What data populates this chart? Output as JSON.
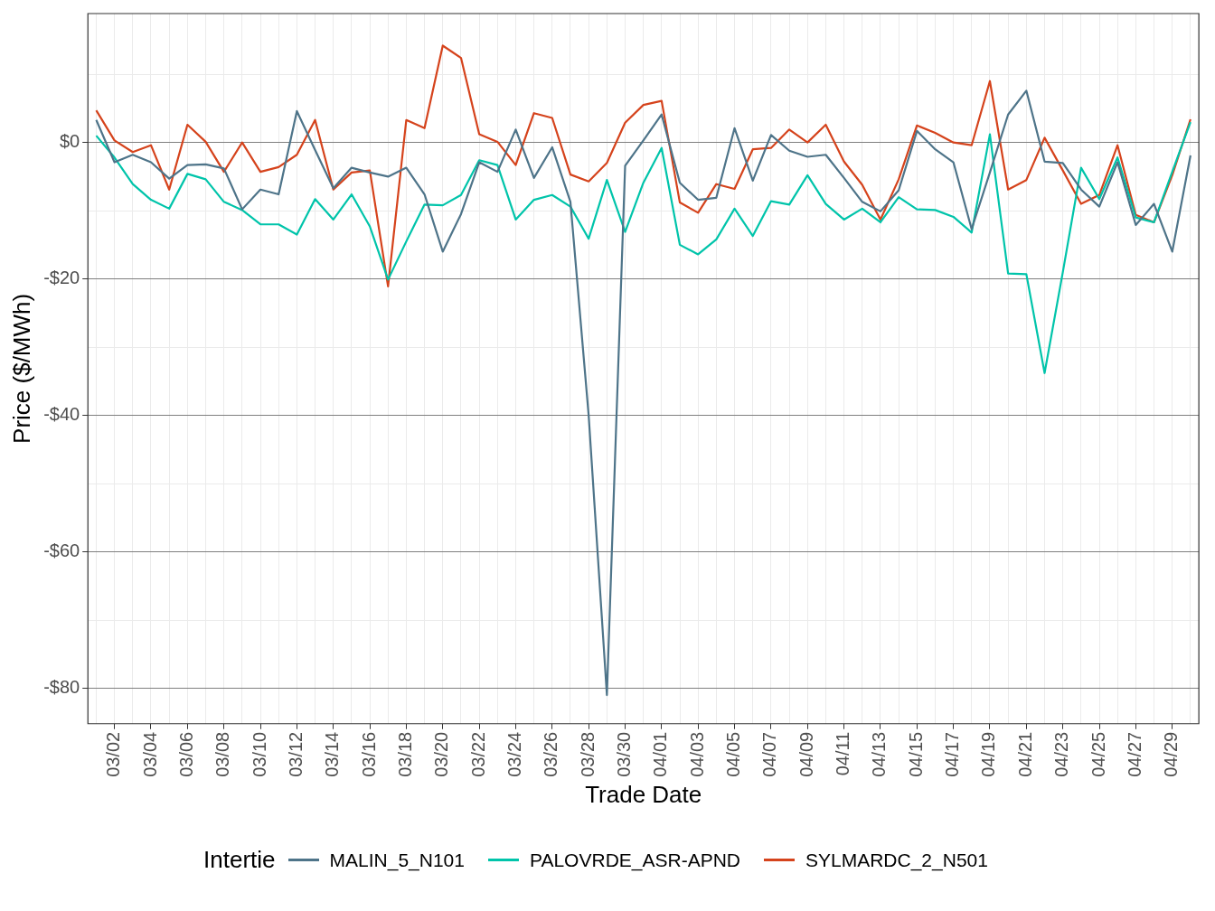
{
  "chart_data": {
    "type": "line",
    "xlabel": "Trade Date",
    "ylabel": "Price ($/MWh)",
    "legend_title": "Intertie",
    "legend": "bottom",
    "grid": true,
    "marker": "none",
    "line_style": "solid",
    "x": [
      "--03-01",
      "--03-02",
      "--03-03",
      "--03-04",
      "--03-05",
      "--03-06",
      "--03-07",
      "--03-08",
      "--03-09",
      "--03-10",
      "--03-11",
      "--03-12",
      "--03-13",
      "--03-14",
      "--03-15",
      "--03-16",
      "--03-17",
      "--03-18",
      "--03-19",
      "--03-20",
      "--03-21",
      "--03-22",
      "--03-23",
      "--03-24",
      "--03-25",
      "--03-26",
      "--03-27",
      "--03-28",
      "--03-29",
      "--03-30",
      "--03-31",
      "--04-01",
      "--04-02",
      "--04-03",
      "--04-04",
      "--04-05",
      "--04-06",
      "--04-07",
      "--04-08",
      "--04-09",
      "--04-10",
      "--04-11",
      "--04-12",
      "--04-13",
      "--04-14",
      "--04-15",
      "--04-16",
      "--04-17",
      "--04-18",
      "--04-19",
      "--04-20",
      "--04-21",
      "--04-22",
      "--04-23",
      "--04-24",
      "--04-25",
      "--04-26",
      "--04-27",
      "--04-28",
      "--04-29",
      "--04-30"
    ],
    "xlim": [
      "--02-28T13:00",
      "--04-30T11:00"
    ],
    "xticks": [
      {
        "value": "--03-01",
        "label": null
      },
      {
        "value": "--03-02",
        "label": "03/02"
      },
      {
        "value": "--03-03",
        "label": null
      },
      {
        "value": "--03-04",
        "label": "03/04"
      },
      {
        "value": "--03-05",
        "label": null
      },
      {
        "value": "--03-06",
        "label": "03/06"
      },
      {
        "value": "--03-07",
        "label": null
      },
      {
        "value": "--03-08",
        "label": "03/08"
      },
      {
        "value": "--03-09",
        "label": null
      },
      {
        "value": "--03-10",
        "label": "03/10"
      },
      {
        "value": "--03-11",
        "label": null
      },
      {
        "value": "--03-12",
        "label": "03/12"
      },
      {
        "value": "--03-13",
        "label": null
      },
      {
        "value": "--03-14",
        "label": "03/14"
      },
      {
        "value": "--03-15",
        "label": null
      },
      {
        "value": "--03-16",
        "label": "03/16"
      },
      {
        "value": "--03-17",
        "label": null
      },
      {
        "value": "--03-18",
        "label": "03/18"
      },
      {
        "value": "--03-19",
        "label": null
      },
      {
        "value": "--03-20",
        "label": "03/20"
      },
      {
        "value": "--03-21",
        "label": null
      },
      {
        "value": "--03-22",
        "label": "03/22"
      },
      {
        "value": "--03-23",
        "label": null
      },
      {
        "value": "--03-24",
        "label": "03/24"
      },
      {
        "value": "--03-25",
        "label": null
      },
      {
        "value": "--03-26",
        "label": "03/26"
      },
      {
        "value": "--03-27",
        "label": null
      },
      {
        "value": "--03-28",
        "label": "03/28"
      },
      {
        "value": "--03-29",
        "label": null
      },
      {
        "value": "--03-30",
        "label": "03/30"
      },
      {
        "value": "--03-31",
        "label": null
      },
      {
        "value": "--04-01",
        "label": "04/01"
      },
      {
        "value": "--04-02",
        "label": null
      },
      {
        "value": "--04-03",
        "label": "04/03"
      },
      {
        "value": "--04-04",
        "label": null
      },
      {
        "value": "--04-05",
        "label": "04/05"
      },
      {
        "value": "--04-06",
        "label": null
      },
      {
        "value": "--04-07",
        "label": "04/07"
      },
      {
        "value": "--04-08",
        "label": null
      },
      {
        "value": "--04-09",
        "label": "04/09"
      },
      {
        "value": "--04-10",
        "label": null
      },
      {
        "value": "--04-11",
        "label": "04/11"
      },
      {
        "value": "--04-12",
        "label": null
      },
      {
        "value": "--04-13",
        "label": "04/13"
      },
      {
        "value": "--04-14",
        "label": null
      },
      {
        "value": "--04-15",
        "label": "04/15"
      },
      {
        "value": "--04-16",
        "label": null
      },
      {
        "value": "--04-17",
        "label": "04/17"
      },
      {
        "value": "--04-18",
        "label": null
      },
      {
        "value": "--04-19",
        "label": "04/19"
      },
      {
        "value": "--04-20",
        "label": null
      },
      {
        "value": "--04-21",
        "label": "04/21"
      },
      {
        "value": "--04-22",
        "label": null
      },
      {
        "value": "--04-23",
        "label": "04/23"
      },
      {
        "value": "--04-24",
        "label": null
      },
      {
        "value": "--04-25",
        "label": "04/25"
      },
      {
        "value": "--04-26",
        "label": null
      },
      {
        "value": "--04-27",
        "label": "04/27"
      },
      {
        "value": "--04-28",
        "label": null
      },
      {
        "value": "--04-29",
        "label": "04/29"
      },
      {
        "value": "--04-30",
        "label": null
      }
    ],
    "ylim": [
      -85.2,
      18.9
    ],
    "yticks": [
      {
        "value": -80,
        "label": "-$80"
      },
      {
        "value": -70,
        "label": null
      },
      {
        "value": -60,
        "label": "-$60"
      },
      {
        "value": -50,
        "label": null
      },
      {
        "value": -40,
        "label": "-$40"
      },
      {
        "value": -30,
        "label": null
      },
      {
        "value": -20,
        "label": "-$20"
      },
      {
        "value": -10,
        "label": null
      },
      {
        "value": 0,
        "label": "$0"
      },
      {
        "value": 10,
        "label": null
      }
    ],
    "series": [
      {
        "name": "MALIN_5_N101",
        "color": "#4e7489",
        "values": [
          3.3,
          -2.9,
          -1.8,
          -2.9,
          -5.3,
          -3.3,
          -3.2,
          -3.8,
          -9.8,
          -6.9,
          -7.6,
          4.6,
          -1.1,
          -6.7,
          -3.7,
          -4.4,
          -5.0,
          -3.7,
          -7.6,
          -16.0,
          -10.5,
          -2.9,
          -4.3,
          1.9,
          -5.2,
          -0.7,
          -8.7,
          -40,
          -81,
          -3.4,
          0.3,
          4.1,
          -5.9,
          -8.4,
          -8.1,
          2.1,
          -5.6,
          1.1,
          -1.2,
          -2.1,
          -1.8,
          -5.2,
          -8.7,
          -10.1,
          -7.0,
          1.7,
          -1.0,
          -2.9,
          -12.7,
          -4.4,
          4.1,
          7.6,
          -2.8,
          -3.0,
          -6.9,
          -9.4,
          -2.9,
          -12.1,
          -9.0,
          -16.0,
          -1.9
        ]
      },
      {
        "name": "PALOVRDE_ASR-APND",
        "color": "#00c4aa",
        "values": [
          1.0,
          -2.2,
          -6.1,
          -8.4,
          -9.7,
          -4.6,
          -5.4,
          -8.7,
          -9.9,
          -12.0,
          -12.0,
          -13.5,
          -8.3,
          -11.3,
          -7.6,
          -12.3,
          -20.1,
          -14.5,
          -9.1,
          -9.2,
          -7.7,
          -2.6,
          -3.3,
          -11.3,
          -8.4,
          -7.7,
          -9.4,
          -14.1,
          -5.5,
          -13.1,
          -5.9,
          -0.8,
          -15.0,
          -16.4,
          -14.2,
          -9.7,
          -13.7,
          -8.6,
          -9.1,
          -4.8,
          -9.0,
          -11.3,
          -9.7,
          -11.7,
          -8.0,
          -9.8,
          -9.9,
          -10.9,
          -13.2,
          1.2,
          -19.2,
          -19.3,
          -33.8,
          -19,
          -3.7,
          -8.3,
          -2.2,
          -11.0,
          -11.7,
          -4.3,
          3.0
        ]
      },
      {
        "name": "SYLMARDC_2_N501",
        "color": "#d5431c",
        "values": [
          4.7,
          0.3,
          -1.4,
          -0.4,
          -6.9,
          2.6,
          0.1,
          -4.3,
          0.0,
          -4.3,
          -3.6,
          -1.8,
          3.3,
          -6.9,
          -4.4,
          -4.1,
          -21.1,
          3.3,
          2.1,
          14.2,
          12.4,
          1.2,
          0.1,
          -3.3,
          4.3,
          3.6,
          -4.7,
          -5.7,
          -3.0,
          2.9,
          5.5,
          6.1,
          -8.8,
          -10.3,
          -6.1,
          -6.8,
          -1.0,
          -0.8,
          1.9,
          0.0,
          2.6,
          -2.8,
          -6.2,
          -11.3,
          -5.4,
          2.5,
          1.4,
          0.0,
          -0.4,
          9.0,
          -6.9,
          -5.5,
          0.7,
          -4.1,
          -9.0,
          -7.7,
          -0.4,
          -10.6,
          -11.7,
          -4.8,
          3.4
        ]
      }
    ]
  }
}
